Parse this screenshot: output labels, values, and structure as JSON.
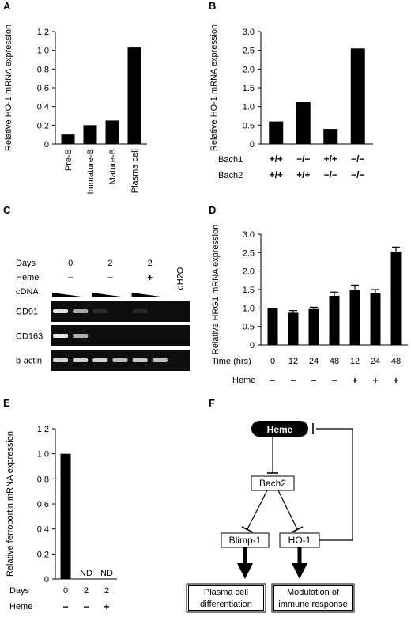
{
  "chart_data": [
    {
      "panel": "A",
      "type": "bar",
      "ylabel": "Relative HO-1 mRNA expression",
      "categories": [
        "Pre-B",
        "Immature-B",
        "Mature-B",
        "Plasma cell"
      ],
      "values": [
        0.1,
        0.2,
        0.25,
        1.03
      ],
      "yticks": [
        "0",
        "0.2",
        "0.4",
        "0.6",
        "0.8",
        "1.0",
        "1.2"
      ],
      "ylim": [
        0,
        1.2
      ],
      "bar_color": "#000000"
    },
    {
      "panel": "B",
      "type": "bar",
      "ylabel": "Relative HO-1 mRNA expression",
      "values": [
        0.6,
        1.12,
        0.4,
        2.55
      ],
      "yticks": [
        "0",
        "0.5",
        "1.0",
        "1.5",
        "2.0",
        "2.5",
        "3.0"
      ],
      "ylim": [
        0,
        3.0
      ],
      "genotype_rows": [
        {
          "label": "Bach1",
          "values": [
            "+/+",
            "−/−",
            "+/+",
            "−/−"
          ]
        },
        {
          "label": "Bach2",
          "values": [
            "+/+",
            "+/+",
            "−/−",
            "−/−"
          ]
        }
      ],
      "bar_color": "#000000"
    },
    {
      "panel": "D",
      "type": "bar",
      "ylabel": "Relative HRG1 mRNA expression",
      "values": [
        1.0,
        0.87,
        0.97,
        1.33,
        1.48,
        1.4,
        2.53
      ],
      "errors": [
        0.0,
        0.06,
        0.05,
        0.1,
        0.14,
        0.1,
        0.12
      ],
      "yticks": [
        "0",
        "0.5",
        "1.0",
        "1.5",
        "2.0",
        "2.5",
        "3.0"
      ],
      "ylim": [
        0,
        3.0
      ],
      "row1_label": "Time (hrs)",
      "row1": [
        "0",
        "12",
        "24",
        "48",
        "12",
        "24",
        "48"
      ],
      "row2_label": "Heme",
      "row2": [
        "−",
        "−",
        "−",
        "−",
        "+",
        "+",
        "+"
      ],
      "bar_color": "#000000"
    },
    {
      "panel": "E",
      "type": "bar",
      "ylabel": "Relative ferroportin mRNA expression",
      "values": [
        1.0,
        null,
        null
      ],
      "value_labels": [
        "",
        "ND",
        "ND"
      ],
      "yticks": [
        "0",
        "0.2",
        "0.4",
        "0.6",
        "0.8",
        "1.0",
        "1.2"
      ],
      "ylim": [
        0,
        1.2
      ],
      "row1_label": "Days",
      "row1": [
        "0",
        "2",
        "2"
      ],
      "row2_label": "Heme",
      "row2": [
        "−",
        "−",
        "+"
      ],
      "bar_color": "#000000"
    }
  ],
  "panel_c": {
    "letter": "C",
    "days_label": "Days",
    "days": [
      "0",
      "2",
      "2"
    ],
    "heme_label": "Heme",
    "heme": [
      "−",
      "−",
      "+"
    ],
    "cdna_label": "cDNA",
    "water_label": "dH2O",
    "gel_rows": [
      {
        "label": "CD91",
        "bands": [
          0.95,
          0.7,
          0.15,
          0.0,
          0.12,
          0.0,
          0.0
        ]
      },
      {
        "label": "CD163",
        "bands": [
          1.0,
          0.75,
          0.0,
          0.0,
          0.0,
          0.0,
          0.0
        ]
      },
      {
        "label": "b-actin",
        "bands": [
          0.9,
          0.9,
          0.9,
          0.8,
          0.85,
          0.8,
          0.0
        ]
      }
    ]
  },
  "panel_f": {
    "letter": "F",
    "nodes": {
      "heme": "Heme",
      "bach2": "Bach2",
      "blimp1": "Blimp-1",
      "ho1": "HO-1",
      "plasma": [
        "Plasma cell",
        "differentiation"
      ],
      "immune": [
        "Modulation of",
        "immune response"
      ]
    }
  },
  "colors": {
    "bar": "#000000",
    "gel_bg": "#0e0e0e",
    "band": "#e8e8e8"
  }
}
